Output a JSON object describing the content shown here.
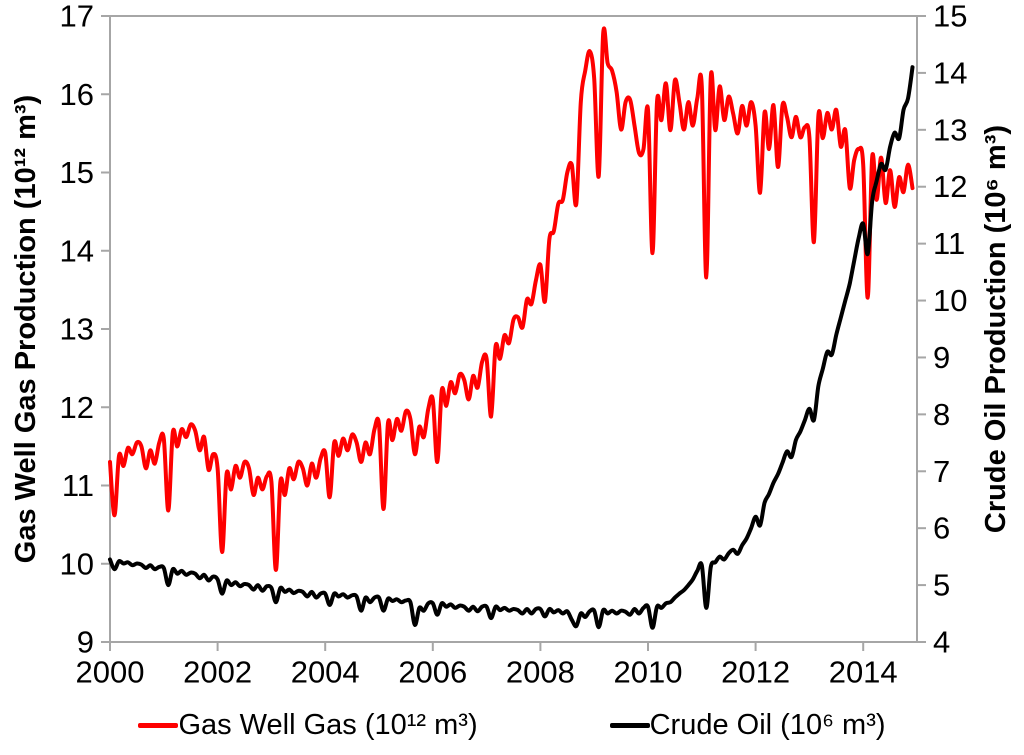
{
  "chart_data": {
    "type": "line",
    "title": "",
    "x_axis": {
      "min": 2000,
      "max": 2015,
      "ticks": [
        2000,
        2002,
        2004,
        2006,
        2008,
        2010,
        2012,
        2014
      ]
    },
    "left_axis": {
      "label": "Gas Well Gas Production (10¹² m³)",
      "min": 9,
      "max": 17,
      "ticks": [
        9,
        10,
        11,
        12,
        13,
        14,
        15,
        16,
        17
      ]
    },
    "right_axis": {
      "label": "Crude Oil Production (10⁶ m³)",
      "min": 4,
      "max": 15,
      "ticks": [
        4,
        5,
        6,
        7,
        8,
        9,
        10,
        11,
        12,
        13,
        14,
        15
      ]
    },
    "x_start_year": 2000,
    "x_step_months": 1,
    "grid": false,
    "legend_position": "bottom",
    "axis_color": "#a6a6a6",
    "text_color": "#000000",
    "series": [
      {
        "name": "Gas Well Gas (10¹² m³)",
        "color": "#fe0000",
        "axis": "left",
        "values": [
          11.3,
          10.62,
          11.38,
          11.25,
          11.48,
          11.4,
          11.55,
          11.5,
          11.22,
          11.45,
          11.28,
          11.55,
          11.6,
          10.68,
          11.68,
          11.5,
          11.72,
          11.62,
          11.78,
          11.7,
          11.45,
          11.62,
          11.2,
          11.4,
          11.22,
          10.15,
          11.15,
          10.95,
          11.25,
          11.1,
          11.3,
          11.22,
          10.88,
          11.1,
          10.95,
          11.12,
          11.05,
          9.92,
          11.05,
          10.88,
          11.22,
          11.08,
          11.3,
          11.22,
          11.0,
          11.28,
          11.1,
          11.35,
          11.42,
          10.85,
          11.55,
          11.38,
          11.6,
          11.45,
          11.65,
          11.55,
          11.3,
          11.55,
          11.4,
          11.72,
          11.78,
          10.7,
          11.8,
          11.58,
          11.85,
          11.7,
          11.95,
          11.85,
          11.4,
          11.75,
          11.62,
          11.98,
          12.1,
          11.3,
          12.22,
          12.02,
          12.32,
          12.18,
          12.42,
          12.35,
          12.1,
          12.4,
          12.25,
          12.58,
          12.62,
          11.88,
          12.78,
          12.62,
          12.92,
          12.82,
          13.12,
          13.15,
          13.02,
          13.38,
          13.32,
          13.62,
          13.82,
          13.35,
          14.15,
          14.25,
          14.6,
          14.65,
          15.0,
          15.1,
          14.6,
          15.9,
          16.3,
          16.55,
          16.2,
          14.95,
          16.78,
          16.4,
          16.3,
          16.03,
          15.55,
          15.9,
          15.93,
          15.6,
          15.25,
          15.3,
          15.8,
          13.97,
          15.9,
          15.67,
          16.14,
          15.54,
          16.18,
          15.9,
          15.55,
          15.9,
          15.6,
          15.95,
          16.1,
          13.66,
          16.22,
          15.54,
          16.1,
          15.67,
          15.97,
          15.75,
          15.5,
          15.85,
          15.6,
          15.9,
          15.6,
          14.74,
          15.77,
          15.3,
          15.86,
          15.07,
          15.86,
          15.71,
          15.45,
          15.71,
          15.45,
          15.58,
          15.45,
          14.11,
          15.73,
          15.44,
          15.76,
          15.55,
          15.8,
          15.33,
          15.54,
          14.8,
          15.16,
          15.3,
          15.1,
          13.4,
          15.2,
          14.65,
          15.19,
          14.61,
          15.03,
          14.56,
          14.94,
          14.75,
          15.1,
          14.8
        ]
      },
      {
        "name": "Crude Oil (10⁶ m³)",
        "color": "#000000",
        "axis": "right",
        "values": [
          5.45,
          5.28,
          5.42,
          5.38,
          5.4,
          5.35,
          5.38,
          5.36,
          5.3,
          5.35,
          5.28,
          5.32,
          5.3,
          5.0,
          5.28,
          5.2,
          5.25,
          5.18,
          5.22,
          5.2,
          5.12,
          5.18,
          5.08,
          5.15,
          5.1,
          4.85,
          5.08,
          5.0,
          5.05,
          4.98,
          5.02,
          5.0,
          4.92,
          5.0,
          4.9,
          4.98,
          4.95,
          4.7,
          4.95,
          4.88,
          4.92,
          4.86,
          4.9,
          4.88,
          4.8,
          4.88,
          4.78,
          4.85,
          4.85,
          4.65,
          4.85,
          4.8,
          4.84,
          4.78,
          4.82,
          4.8,
          4.55,
          4.78,
          4.7,
          4.78,
          4.78,
          4.55,
          4.76,
          4.72,
          4.75,
          4.7,
          4.73,
          4.7,
          4.3,
          4.6,
          4.55,
          4.68,
          4.68,
          4.48,
          4.68,
          4.62,
          4.66,
          4.6,
          4.64,
          4.62,
          4.55,
          4.62,
          4.54,
          4.62,
          4.62,
          4.42,
          4.62,
          4.56,
          4.6,
          4.55,
          4.58,
          4.56,
          4.5,
          4.58,
          4.5,
          4.58,
          4.58,
          4.45,
          4.58,
          4.52,
          4.56,
          4.5,
          4.54,
          4.39,
          4.28,
          4.5,
          4.44,
          4.54,
          4.55,
          4.26,
          4.56,
          4.5,
          4.55,
          4.5,
          4.55,
          4.53,
          4.48,
          4.58,
          4.5,
          4.6,
          4.62,
          4.25,
          4.62,
          4.6,
          4.68,
          4.7,
          4.78,
          4.85,
          4.91,
          5.0,
          5.1,
          5.25,
          5.35,
          4.6,
          5.32,
          5.4,
          5.5,
          5.45,
          5.56,
          5.62,
          5.55,
          5.7,
          5.82,
          6.0,
          6.2,
          6.05,
          6.45,
          6.6,
          6.8,
          6.95,
          7.15,
          7.35,
          7.25,
          7.55,
          7.7,
          7.9,
          8.1,
          7.9,
          8.5,
          8.8,
          9.1,
          9.05,
          9.4,
          9.7,
          10.0,
          10.3,
          10.7,
          11.1,
          11.35,
          10.82,
          11.75,
          12.1,
          12.4,
          12.3,
          12.7,
          12.95,
          12.85,
          13.35,
          13.55,
          14.1
        ]
      }
    ]
  }
}
